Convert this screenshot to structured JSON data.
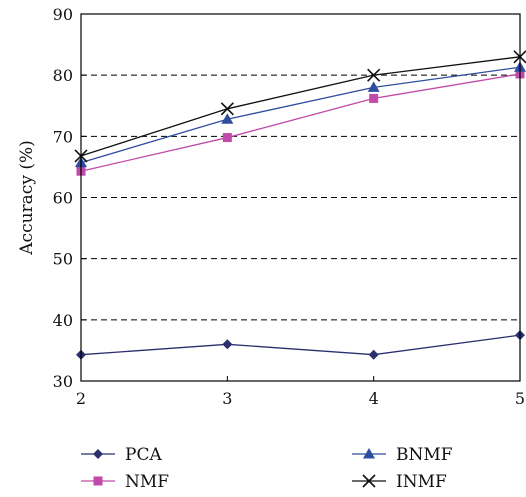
{
  "chart_data": {
    "type": "line",
    "ylabel": "Accuracy (%)",
    "xlabel": "",
    "x": [
      2,
      3,
      4,
      5
    ],
    "xlim": [
      2,
      5
    ],
    "ylim": [
      30,
      90
    ],
    "yticks": [
      30,
      40,
      50,
      60,
      70,
      80,
      90
    ],
    "xticks": [
      2,
      3,
      4,
      5
    ],
    "grid": "horizontal dashed",
    "legend_position": "bottom",
    "series": [
      {
        "name": "PCA",
        "values": [
          34.3,
          36.0,
          34.3,
          37.5
        ],
        "color": "#2b2f6e",
        "marker": "diamond"
      },
      {
        "name": "NMF",
        "values": [
          64.3,
          69.8,
          76.2,
          80.2
        ],
        "color": "#c04aa8",
        "marker": "square"
      },
      {
        "name": "BNMF",
        "values": [
          65.7,
          72.8,
          78.0,
          81.3
        ],
        "color": "#2f4d9e",
        "marker": "triangle"
      },
      {
        "name": "INMF",
        "values": [
          66.8,
          74.5,
          80.0,
          83.0
        ],
        "color": "#111111",
        "marker": "x"
      }
    ]
  }
}
